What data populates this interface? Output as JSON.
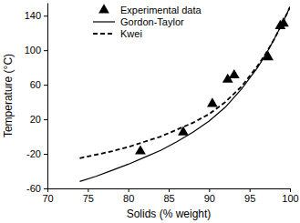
{
  "chart_data": {
    "type": "scatter",
    "x_label": "Solids (% weight)",
    "y_label": "Temperature (°C)",
    "xlim": [
      70,
      100
    ],
    "xticks": [
      70,
      75,
      80,
      85,
      90,
      95,
      100
    ],
    "ylim": [
      -60,
      155
    ],
    "yticks": [
      -60,
      -20,
      20,
      60,
      100,
      140
    ],
    "grid": false,
    "legend": "upper left",
    "series": [
      {
        "name": "Experimental data",
        "type": "scatter",
        "marker": "triangle",
        "color": "#000000",
        "x": [
          81.5,
          86.8,
          90.4,
          92.3,
          93.1,
          97.3,
          98.8,
          99.2
        ],
        "values": [
          -17,
          5,
          38,
          66,
          71,
          92,
          128,
          131
        ]
      },
      {
        "name": "Gordon-Taylor",
        "type": "line",
        "line_style": "solid",
        "color": "#000000",
        "x": [
          74,
          76,
          78,
          80,
          82,
          84,
          86,
          88,
          90,
          92,
          94,
          96,
          97,
          98,
          99,
          100
        ],
        "values": [
          -52,
          -46,
          -39,
          -32,
          -24,
          -16,
          -6,
          5,
          18,
          34,
          55,
          80,
          95,
          112,
          130,
          150
        ]
      },
      {
        "name": "Kwei",
        "type": "line",
        "line_style": "dashed",
        "color": "#000000",
        "x": [
          74,
          76,
          78,
          80,
          82,
          84,
          86,
          88,
          90,
          92,
          94,
          96,
          97,
          98,
          99,
          100
        ],
        "values": [
          -25,
          -21,
          -17,
          -12,
          -6,
          0,
          8,
          16,
          26,
          40,
          58,
          82,
          96,
          112,
          130,
          150
        ]
      }
    ]
  }
}
